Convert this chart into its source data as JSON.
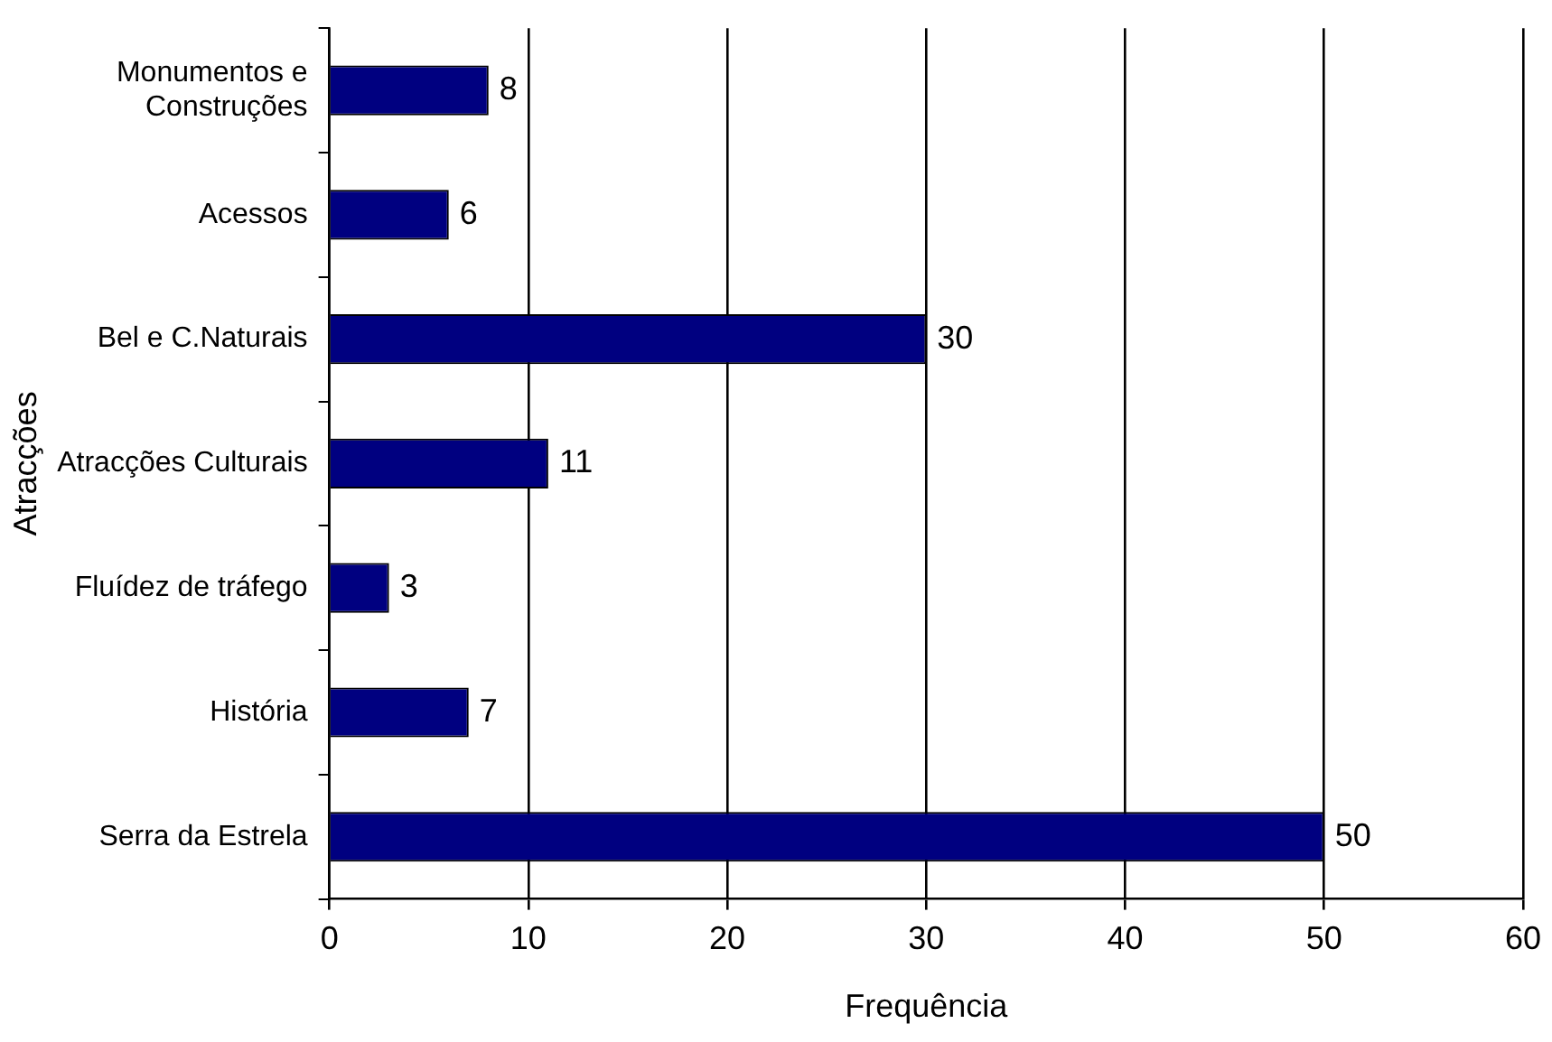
{
  "chart_data": {
    "type": "bar",
    "orientation": "horizontal",
    "categories": [
      "Monumentos e Construções",
      "Acessos",
      "Bel e C.Naturais",
      "Atracções Culturais",
      "Fluídez de tráfego",
      "História",
      "Serra da Estrela"
    ],
    "values": [
      8,
      6,
      30,
      11,
      3,
      7,
      50
    ],
    "color": "#000080",
    "xlim": [
      0,
      60
    ],
    "xticks": [
      0,
      10,
      20,
      30,
      40,
      50,
      60
    ],
    "xlabel": "Frequência",
    "ylabel": "Atracções",
    "grid": "x",
    "data_labels": true,
    "legend": false
  }
}
